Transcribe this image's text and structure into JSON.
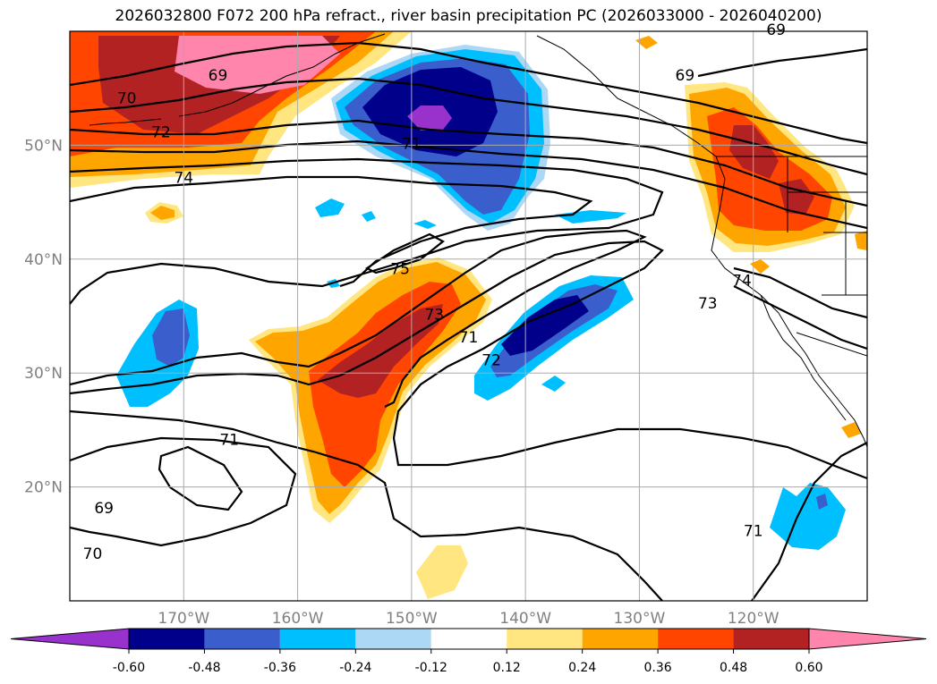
{
  "title": "2026032800 F072 200 hPa refract., river basin precipitation PC (2026033000 - 2026040200)",
  "map": {
    "projection": "cylindrical",
    "lon_range": [
      -180,
      -110
    ],
    "lat_range": [
      10,
      60
    ],
    "lat_ticks": [
      {
        "value": 50,
        "label": "50°N"
      },
      {
        "value": 40,
        "label": "40°N"
      },
      {
        "value": 30,
        "label": "30°N"
      },
      {
        "value": 20,
        "label": "20°N"
      }
    ],
    "lon_ticks": [
      {
        "value": -170,
        "label": "170°W"
      },
      {
        "value": -160,
        "label": "160°W"
      },
      {
        "value": -150,
        "label": "150°W"
      },
      {
        "value": -140,
        "label": "140°W"
      },
      {
        "value": -130,
        "label": "130°W"
      },
      {
        "value": -120,
        "label": "120°W"
      }
    ],
    "grid": true
  },
  "colorbar": {
    "levels": [
      "-0.60",
      "-0.48",
      "-0.36",
      "-0.24",
      "-0.12",
      "0.12",
      "0.24",
      "0.36",
      "0.48",
      "0.60"
    ],
    "colors": [
      "#9932cc",
      "#00008b",
      "#3a5fcd",
      "#00bfff",
      "#add8f5",
      "#ffffff",
      "#ffe680",
      "#ffa500",
      "#ff4500",
      "#b22222",
      "#ff85ad"
    ],
    "extend": "both"
  },
  "contour_labels": [
    {
      "text": "69",
      "lon": -177,
      "lat": 18
    },
    {
      "text": "70",
      "lon": -178,
      "lat": 14
    },
    {
      "text": "71",
      "lon": -166,
      "lat": 24
    },
    {
      "text": "70",
      "lon": -175,
      "lat": 54
    },
    {
      "text": "72",
      "lon": -172,
      "lat": 51
    },
    {
      "text": "74",
      "lon": -170,
      "lat": 47
    },
    {
      "text": "69",
      "lon": -167,
      "lat": 56
    },
    {
      "text": "71",
      "lon": -150,
      "lat": 50
    },
    {
      "text": "75",
      "lon": -151,
      "lat": 39
    },
    {
      "text": "73",
      "lon": -148,
      "lat": 35
    },
    {
      "text": "71",
      "lon": -145,
      "lat": 33
    },
    {
      "text": "72",
      "lon": -143,
      "lat": 31
    },
    {
      "text": "69",
      "lon": -126,
      "lat": 56
    },
    {
      "text": "74",
      "lon": -121,
      "lat": 38
    },
    {
      "text": "73",
      "lon": -124,
      "lat": 36
    },
    {
      "text": "71",
      "lon": -120,
      "lat": 16
    },
    {
      "text": "69",
      "lon": -118,
      "lat": 60
    }
  ],
  "features": [
    {
      "name": "aleutian-positive-anomaly",
      "lon": -170,
      "lat": 55,
      "value": "0.48"
    },
    {
      "name": "gulf-of-alaska-negative-anomaly",
      "lon": -143,
      "lat": 50,
      "value": "-0.60"
    },
    {
      "name": "pacific-northwest-positive-anomaly",
      "lon": -119,
      "lat": 46,
      "value": "0.48"
    },
    {
      "name": "subtropical-positive-band",
      "lon": -150,
      "lat": 30,
      "value": "0.48"
    },
    {
      "name": "subtropical-negative-band",
      "lon": -137,
      "lat": 32,
      "value": "-0.48"
    },
    {
      "name": "west-pacific-negative-anomaly",
      "lon": -174,
      "lat": 32,
      "value": "-0.36"
    },
    {
      "name": "mexico-negative-anomaly",
      "lon": -115,
      "lat": 17,
      "value": "-0.36"
    }
  ]
}
